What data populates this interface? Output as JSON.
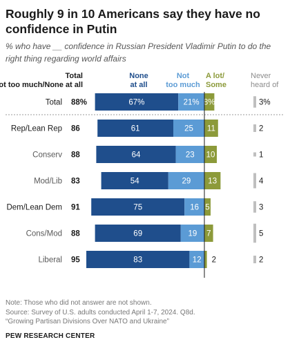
{
  "title": "Roughly 9 in 10 Americans say they have no confidence in Putin",
  "subtitle": "% who have __ confidence in Russian President Vladimir Putin to do the right thing regarding world affairs",
  "colors": {
    "none_at_all": "#1f4e8c",
    "not_too_much": "#5b9bd5",
    "a_lot_some": "#8c9a3a",
    "never_heard": "#bfbfbf",
    "label_gray": "#595959"
  },
  "chart_data": {
    "type": "bar",
    "stacked": true,
    "header": {
      "total_line1": "Total",
      "total_line2": "Not too much/None at all",
      "none_line1": "None",
      "none_line2": "at all",
      "ntm_line1": "Not",
      "ntm_line2": "too much",
      "alot_line1": "A lot/",
      "alot_line2": "Some",
      "never_line1": "Never",
      "never_line2": "heard of"
    },
    "categories": [
      "Total",
      "Rep/Lean Rep",
      "Conserv",
      "Mod/Lib",
      "Dem/Lean Dem",
      "Cons/Mod",
      "Liberal"
    ],
    "category_group": [
      true,
      true,
      false,
      false,
      true,
      false,
      false
    ],
    "net_labels": [
      "88%",
      "86",
      "88",
      "83",
      "91",
      "88",
      "95"
    ],
    "series": [
      {
        "name": "None at all",
        "values": [
          67,
          61,
          64,
          54,
          75,
          69,
          83
        ],
        "labels": [
          "67%",
          "61",
          "64",
          "54",
          "75",
          "69",
          "83"
        ]
      },
      {
        "name": "Not too much",
        "values": [
          21,
          25,
          23,
          29,
          16,
          19,
          12
        ],
        "labels": [
          "21%",
          "25",
          "23",
          "29",
          "16",
          "19",
          "12"
        ]
      },
      {
        "name": "A lot/Some",
        "values": [
          8,
          11,
          10,
          13,
          5,
          7,
          2
        ],
        "labels": [
          "8%",
          "11",
          "10",
          "13",
          "5",
          "7",
          "2"
        ]
      },
      {
        "name": "Never heard of",
        "values": [
          3,
          2,
          1,
          4,
          3,
          5,
          2
        ],
        "labels": [
          "3%",
          "2",
          "1",
          "4",
          "3",
          "5",
          "2"
        ]
      }
    ]
  },
  "note": "Note: Those who did not answer are not shown.",
  "source": "Source: Survey of U.S. adults conducted April 1-7, 2024. Q8d.",
  "report": "“Growing Partisan Divisions Over NATO and Ukraine”",
  "footer": "PEW RESEARCH CENTER"
}
